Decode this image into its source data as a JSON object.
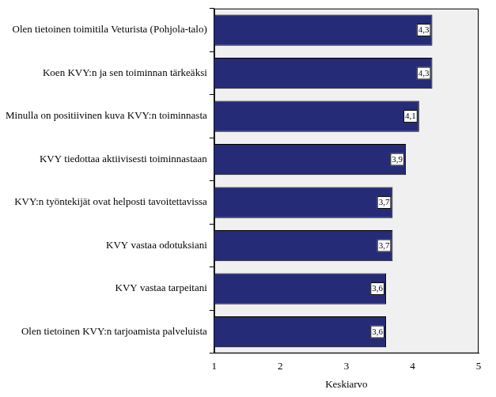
{
  "chart_data": {
    "type": "bar",
    "orientation": "horizontal",
    "categories": [
      "Olen tietoinen toimitila Veturista (Pohjola-talo)",
      "Koen KVY:n ja sen toiminnan tärkeäksi",
      "Minulla on positiivinen kuva KVY:n toiminnasta",
      "KVY tiedottaa aktiivisesti toiminnastaan",
      "KVY:n työntekijät ovat helposti tavoitettavissa",
      "KVY vastaa odotuksiani",
      "KVY vastaa tarpeitani",
      "Olen tietoinen KVY:n tarjoamista palveluista"
    ],
    "values": [
      4.3,
      4.3,
      4.1,
      3.9,
      3.7,
      3.7,
      3.6,
      3.6
    ],
    "value_labels": [
      "4,3",
      "4,3",
      "4,1",
      "3,9",
      "3,7",
      "3,7",
      "3,6",
      "3,6"
    ],
    "data_labels": true,
    "color": "#262b78",
    "x_label": "Keskiarvo",
    "xlim": [
      1,
      5
    ],
    "xticks": [
      1,
      2,
      3,
      4,
      5
    ],
    "grid": false
  }
}
